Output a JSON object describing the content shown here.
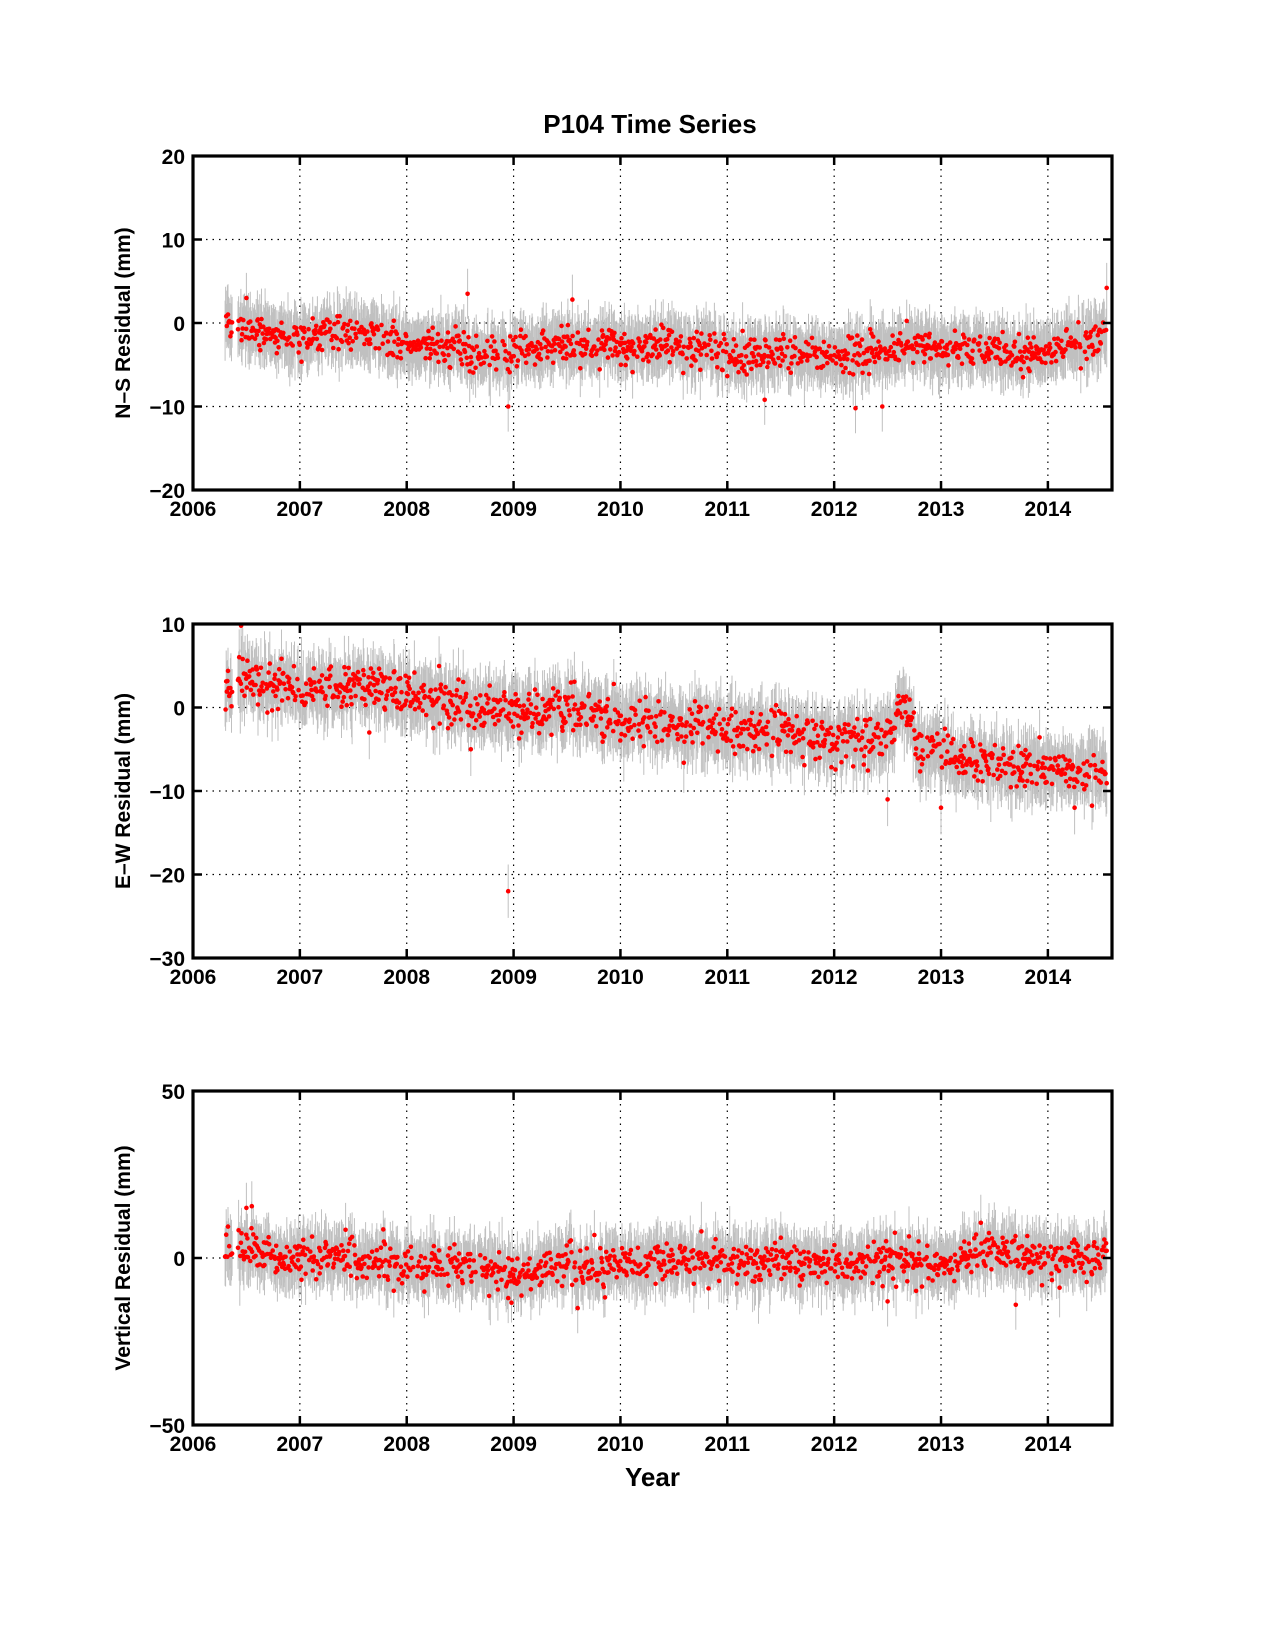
{
  "chart_data": [
    {
      "type": "scatter",
      "title": "P104 Time Series",
      "xlabel": "",
      "ylabel": "N–S Residual (mm)",
      "xlim": [
        2006,
        2014.6
      ],
      "ylim": [
        -20,
        20
      ],
      "xticks": [
        2006,
        2007,
        2008,
        2009,
        2010,
        2011,
        2012,
        2013,
        2014
      ],
      "yticks": [
        -20,
        -10,
        0,
        10,
        20
      ],
      "grid": true,
      "error_bars": true,
      "marker_color": "#ff0000",
      "errorbar_color": "#c0c0c0",
      "x_range": [
        2006.3,
        2014.55
      ],
      "trend": [
        [
          2006.3,
          -0.2
        ],
        [
          2006.6,
          -1.0
        ],
        [
          2007.0,
          -1.8
        ],
        [
          2007.5,
          -1.0
        ],
        [
          2008.0,
          -2.5
        ],
        [
          2008.5,
          -2.8
        ],
        [
          2008.7,
          -4.0
        ],
        [
          2009.0,
          -3.5
        ],
        [
          2009.5,
          -2.6
        ],
        [
          2010.0,
          -2.8
        ],
        [
          2010.5,
          -2.2
        ],
        [
          2011.0,
          -3.8
        ],
        [
          2011.5,
          -3.4
        ],
        [
          2012.0,
          -4.0
        ],
        [
          2012.5,
          -3.4
        ],
        [
          2012.7,
          -2.3
        ],
        [
          2013.0,
          -3.6
        ],
        [
          2013.5,
          -3.0
        ],
        [
          2013.9,
          -3.8
        ],
        [
          2014.2,
          -2.3
        ],
        [
          2014.55,
          -1.3
        ]
      ],
      "scatter_sd": 1.1,
      "errorbar_halfwidth": 3.0,
      "outliers": [
        [
          2008.57,
          3.5
        ],
        [
          2008.95,
          -10.0
        ],
        [
          2011.35,
          -9.2
        ],
        [
          2012.2,
          -10.2
        ],
        [
          2012.45,
          -10.0
        ],
        [
          2014.55,
          4.2
        ],
        [
          2009.55,
          2.8
        ],
        [
          2006.5,
          3.0
        ]
      ]
    },
    {
      "type": "scatter",
      "title": "",
      "xlabel": "",
      "ylabel": "E–W Residual (mm)",
      "xlim": [
        2006,
        2014.6
      ],
      "ylim": [
        -30,
        10
      ],
      "xticks": [
        2006,
        2007,
        2008,
        2009,
        2010,
        2011,
        2012,
        2013,
        2014
      ],
      "yticks": [
        -30,
        -20,
        -10,
        0,
        10
      ],
      "grid": true,
      "error_bars": true,
      "marker_color": "#ff0000",
      "errorbar_color": "#c0c0c0",
      "x_range": [
        2006.3,
        2014.55
      ],
      "trend": [
        [
          2006.3,
          1.5
        ],
        [
          2006.5,
          3.8
        ],
        [
          2007.0,
          2.2
        ],
        [
          2007.5,
          2.5
        ],
        [
          2008.0,
          1.5
        ],
        [
          2008.5,
          0.5
        ],
        [
          2009.0,
          -0.5
        ],
        [
          2009.5,
          -0.3
        ],
        [
          2010.0,
          -1.5
        ],
        [
          2010.5,
          -2.0
        ],
        [
          2011.0,
          -2.8
        ],
        [
          2011.5,
          -3.0
        ],
        [
          2012.0,
          -4.0
        ],
        [
          2012.5,
          -4.0
        ],
        [
          2012.65,
          0.5
        ],
        [
          2012.8,
          -5.0
        ],
        [
          2013.0,
          -5.5
        ],
        [
          2013.5,
          -6.8
        ],
        [
          2014.0,
          -7.5
        ],
        [
          2014.55,
          -8.0
        ]
      ],
      "scatter_sd": 1.3,
      "errorbar_halfwidth": 3.2,
      "outliers": [
        [
          2008.95,
          -22.0
        ],
        [
          2006.45,
          9.8
        ],
        [
          2012.5,
          -11.0
        ],
        [
          2013.0,
          -12.0
        ],
        [
          2014.25,
          -12.0
        ],
        [
          2008.6,
          -5.0
        ],
        [
          2007.65,
          -3.0
        ]
      ]
    },
    {
      "type": "scatter",
      "title": "",
      "xlabel": "Year",
      "ylabel": "Vertical Residual (mm)",
      "xlim": [
        2006,
        2014.6
      ],
      "ylim": [
        -50,
        50
      ],
      "xticks": [
        2006,
        2007,
        2008,
        2009,
        2010,
        2011,
        2012,
        2013,
        2014
      ],
      "yticks": [
        -50,
        0,
        50
      ],
      "grid": true,
      "error_bars": true,
      "marker_color": "#ff0000",
      "errorbar_color": "#c0c0c0",
      "x_range": [
        2006.3,
        2014.55
      ],
      "trend": [
        [
          2006.3,
          2.0
        ],
        [
          2006.5,
          3.5
        ],
        [
          2006.8,
          0.0
        ],
        [
          2007.5,
          0.0
        ],
        [
          2008.0,
          -2.0
        ],
        [
          2008.5,
          -2.5
        ],
        [
          2009.0,
          -5.0
        ],
        [
          2009.5,
          -2.0
        ],
        [
          2010.0,
          -1.5
        ],
        [
          2010.5,
          -1.0
        ],
        [
          2011.0,
          -1.0
        ],
        [
          2011.5,
          -1.5
        ],
        [
          2012.0,
          -2.0
        ],
        [
          2012.5,
          -1.5
        ],
        [
          2013.0,
          -2.5
        ],
        [
          2013.5,
          3.5
        ],
        [
          2014.0,
          -1.0
        ],
        [
          2014.55,
          0.5
        ]
      ],
      "scatter_sd": 3.0,
      "errorbar_halfwidth": 7.5,
      "outliers": [
        [
          2006.5,
          15.0
        ],
        [
          2006.55,
          15.5
        ],
        [
          2009.6,
          -15.0
        ],
        [
          2013.7,
          -14.0
        ],
        [
          2008.95,
          -12.0
        ],
        [
          2012.5,
          -13.0
        ]
      ]
    }
  ]
}
